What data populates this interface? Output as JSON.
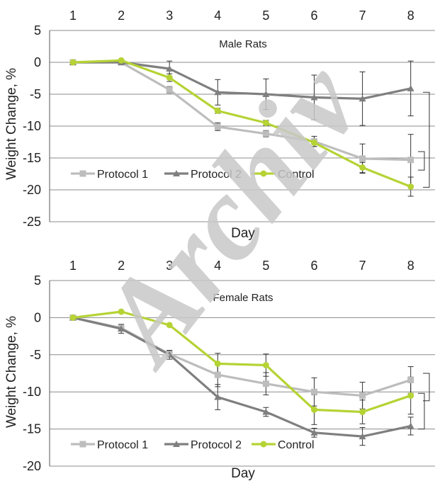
{
  "watermark": "Archiv",
  "chart_data": [
    {
      "type": "line",
      "title": "Male Rats",
      "xlabel": "Day",
      "ylabel": "Weight Change, %",
      "x": [
        1,
        2,
        3,
        4,
        5,
        6,
        7,
        8
      ],
      "x_tick_labels": [
        "1",
        "2",
        "3",
        "4",
        "5",
        "6",
        "7",
        "8"
      ],
      "xaxis_position": "top",
      "ylim": [
        -25,
        5
      ],
      "y_ticks": [
        5,
        0,
        -5,
        -10,
        -15,
        -20,
        -25
      ],
      "y_tick_labels": [
        "5",
        "0",
        "-5",
        "-10",
        "-15",
        "-20",
        "-25"
      ],
      "grid": "horizontal",
      "legend_position": "lower-left",
      "series": [
        {
          "name": "Protocol 1",
          "marker": "square",
          "color": "#bdbdbd",
          "values": [
            0,
            0,
            -4.3,
            -10.1,
            -11.2,
            -12.4,
            -15.1,
            -15.3
          ],
          "error": [
            0,
            0,
            0.5,
            0.6,
            0.5,
            0.8,
            2.3,
            4.0
          ]
        },
        {
          "name": "Protocol 2",
          "marker": "triangle",
          "color": "#7f7f7f",
          "values": [
            0,
            0,
            -1.0,
            -4.7,
            -5.0,
            -5.5,
            -5.7,
            -4.1
          ],
          "error": [
            0,
            0,
            1.2,
            2.0,
            2.4,
            3.5,
            4.2,
            4.3
          ]
        },
        {
          "name": "Control",
          "marker": "circle",
          "color": "#b5d334",
          "values": [
            0,
            0.3,
            -2.4,
            -7.6,
            -9.5,
            -12.6,
            -16.5,
            -19.5
          ],
          "error": [
            0,
            0,
            0.6,
            0.4,
            0.4,
            0.6,
            0.8,
            1.5
          ]
        }
      ]
    },
    {
      "type": "line",
      "title": "Female Rats",
      "xlabel": "Day",
      "ylabel": "Weight Change, %",
      "x": [
        1,
        2,
        3,
        4,
        5,
        6,
        7,
        8
      ],
      "x_tick_labels": [
        "1",
        "2",
        "3",
        "4",
        "5",
        "6",
        "7",
        "8"
      ],
      "xaxis_position": "top",
      "ylim": [
        -20,
        5
      ],
      "y_ticks": [
        5,
        0,
        -5,
        -10,
        -15,
        -20
      ],
      "y_tick_labels": [
        "5",
        "0",
        "-5",
        "-10",
        "-15",
        "-20"
      ],
      "grid": "horizontal",
      "legend_position": "lower-left",
      "series": [
        {
          "name": "Protocol 1",
          "marker": "square",
          "color": "#bdbdbd",
          "values": [
            0,
            -1.4,
            -4.9,
            -7.7,
            -8.9,
            -10.0,
            -10.5,
            -8.4
          ],
          "error": [
            0,
            0,
            0.4,
            1.6,
            1.5,
            1.9,
            1.8,
            1.8
          ]
        },
        {
          "name": "Protocol 2",
          "marker": "triangle",
          "color": "#7f7f7f",
          "values": [
            0,
            -1.5,
            -5.0,
            -10.7,
            -12.7,
            -15.5,
            -16.0,
            -14.6
          ],
          "error": [
            0,
            0.6,
            0.6,
            1.7,
            0.6,
            0.6,
            1.2,
            1.2
          ]
        },
        {
          "name": "Control",
          "marker": "circle",
          "color": "#b5d334",
          "values": [
            0,
            0.8,
            -1.0,
            -6.2,
            -6.4,
            -12.4,
            -12.7,
            -10.5
          ],
          "error": [
            0,
            0,
            0,
            1.4,
            1.5,
            2.0,
            1.6,
            2.5
          ]
        }
      ]
    }
  ]
}
